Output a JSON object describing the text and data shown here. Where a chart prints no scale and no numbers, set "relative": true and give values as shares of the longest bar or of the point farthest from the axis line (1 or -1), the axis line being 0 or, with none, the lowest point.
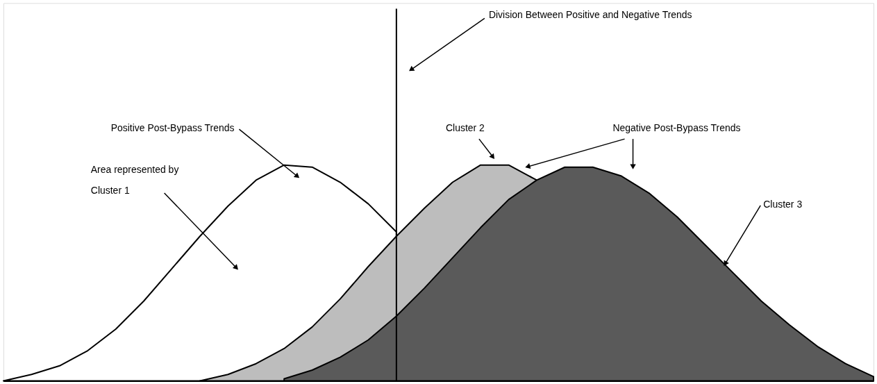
{
  "chart_data": {
    "type": "area",
    "relative": true,
    "categories": [
      null,
      null,
      null,
      null,
      null,
      null,
      null,
      null,
      null,
      null,
      null,
      null,
      null,
      null,
      null,
      null,
      null,
      null,
      null,
      null,
      null,
      null,
      null,
      null,
      null,
      null,
      null,
      null,
      null,
      null,
      null,
      null
    ],
    "tick_labels": false,
    "legend": false,
    "grid": false,
    "series": [
      {
        "color": "#ffffff",
        "values": [
          0.0,
          0.03,
          0.07,
          0.14,
          0.24,
          0.37,
          0.52,
          0.67,
          0.81,
          0.93,
          1.0,
          0.99,
          0.92,
          0.82,
          0.69,
          null,
          null,
          null,
          null,
          null,
          null,
          null,
          null,
          null,
          null,
          null,
          null,
          null,
          null,
          null,
          null,
          null
        ]
      },
      {
        "color": "#bdbdbd",
        "values": [
          null,
          null,
          null,
          null,
          null,
          null,
          null,
          0.0,
          0.03,
          0.08,
          0.15,
          0.25,
          0.38,
          0.53,
          0.67,
          0.8,
          0.92,
          1.0,
          1.0,
          0.93,
          null,
          null,
          null,
          null,
          null,
          null,
          null,
          null,
          null,
          null,
          null,
          null
        ]
      },
      {
        "color": "#5a5a5a",
        "values": [
          null,
          null,
          null,
          null,
          null,
          null,
          null,
          null,
          null,
          null,
          0.01,
          0.05,
          0.11,
          0.19,
          0.3,
          0.43,
          0.57,
          0.71,
          0.84,
          0.93,
          0.99,
          0.99,
          0.95,
          0.87,
          0.76,
          0.63,
          0.5,
          0.37,
          0.26,
          0.16,
          0.08,
          0.02
        ]
      }
    ],
    "annotations": [
      "Division Between Positive and Negative Trends",
      "Positive Post-Bypass Trends",
      "Area represented by\nCluster 1",
      "Cluster 2",
      "Negative Post-Bypass Trends",
      "Cluster 3"
    ]
  }
}
